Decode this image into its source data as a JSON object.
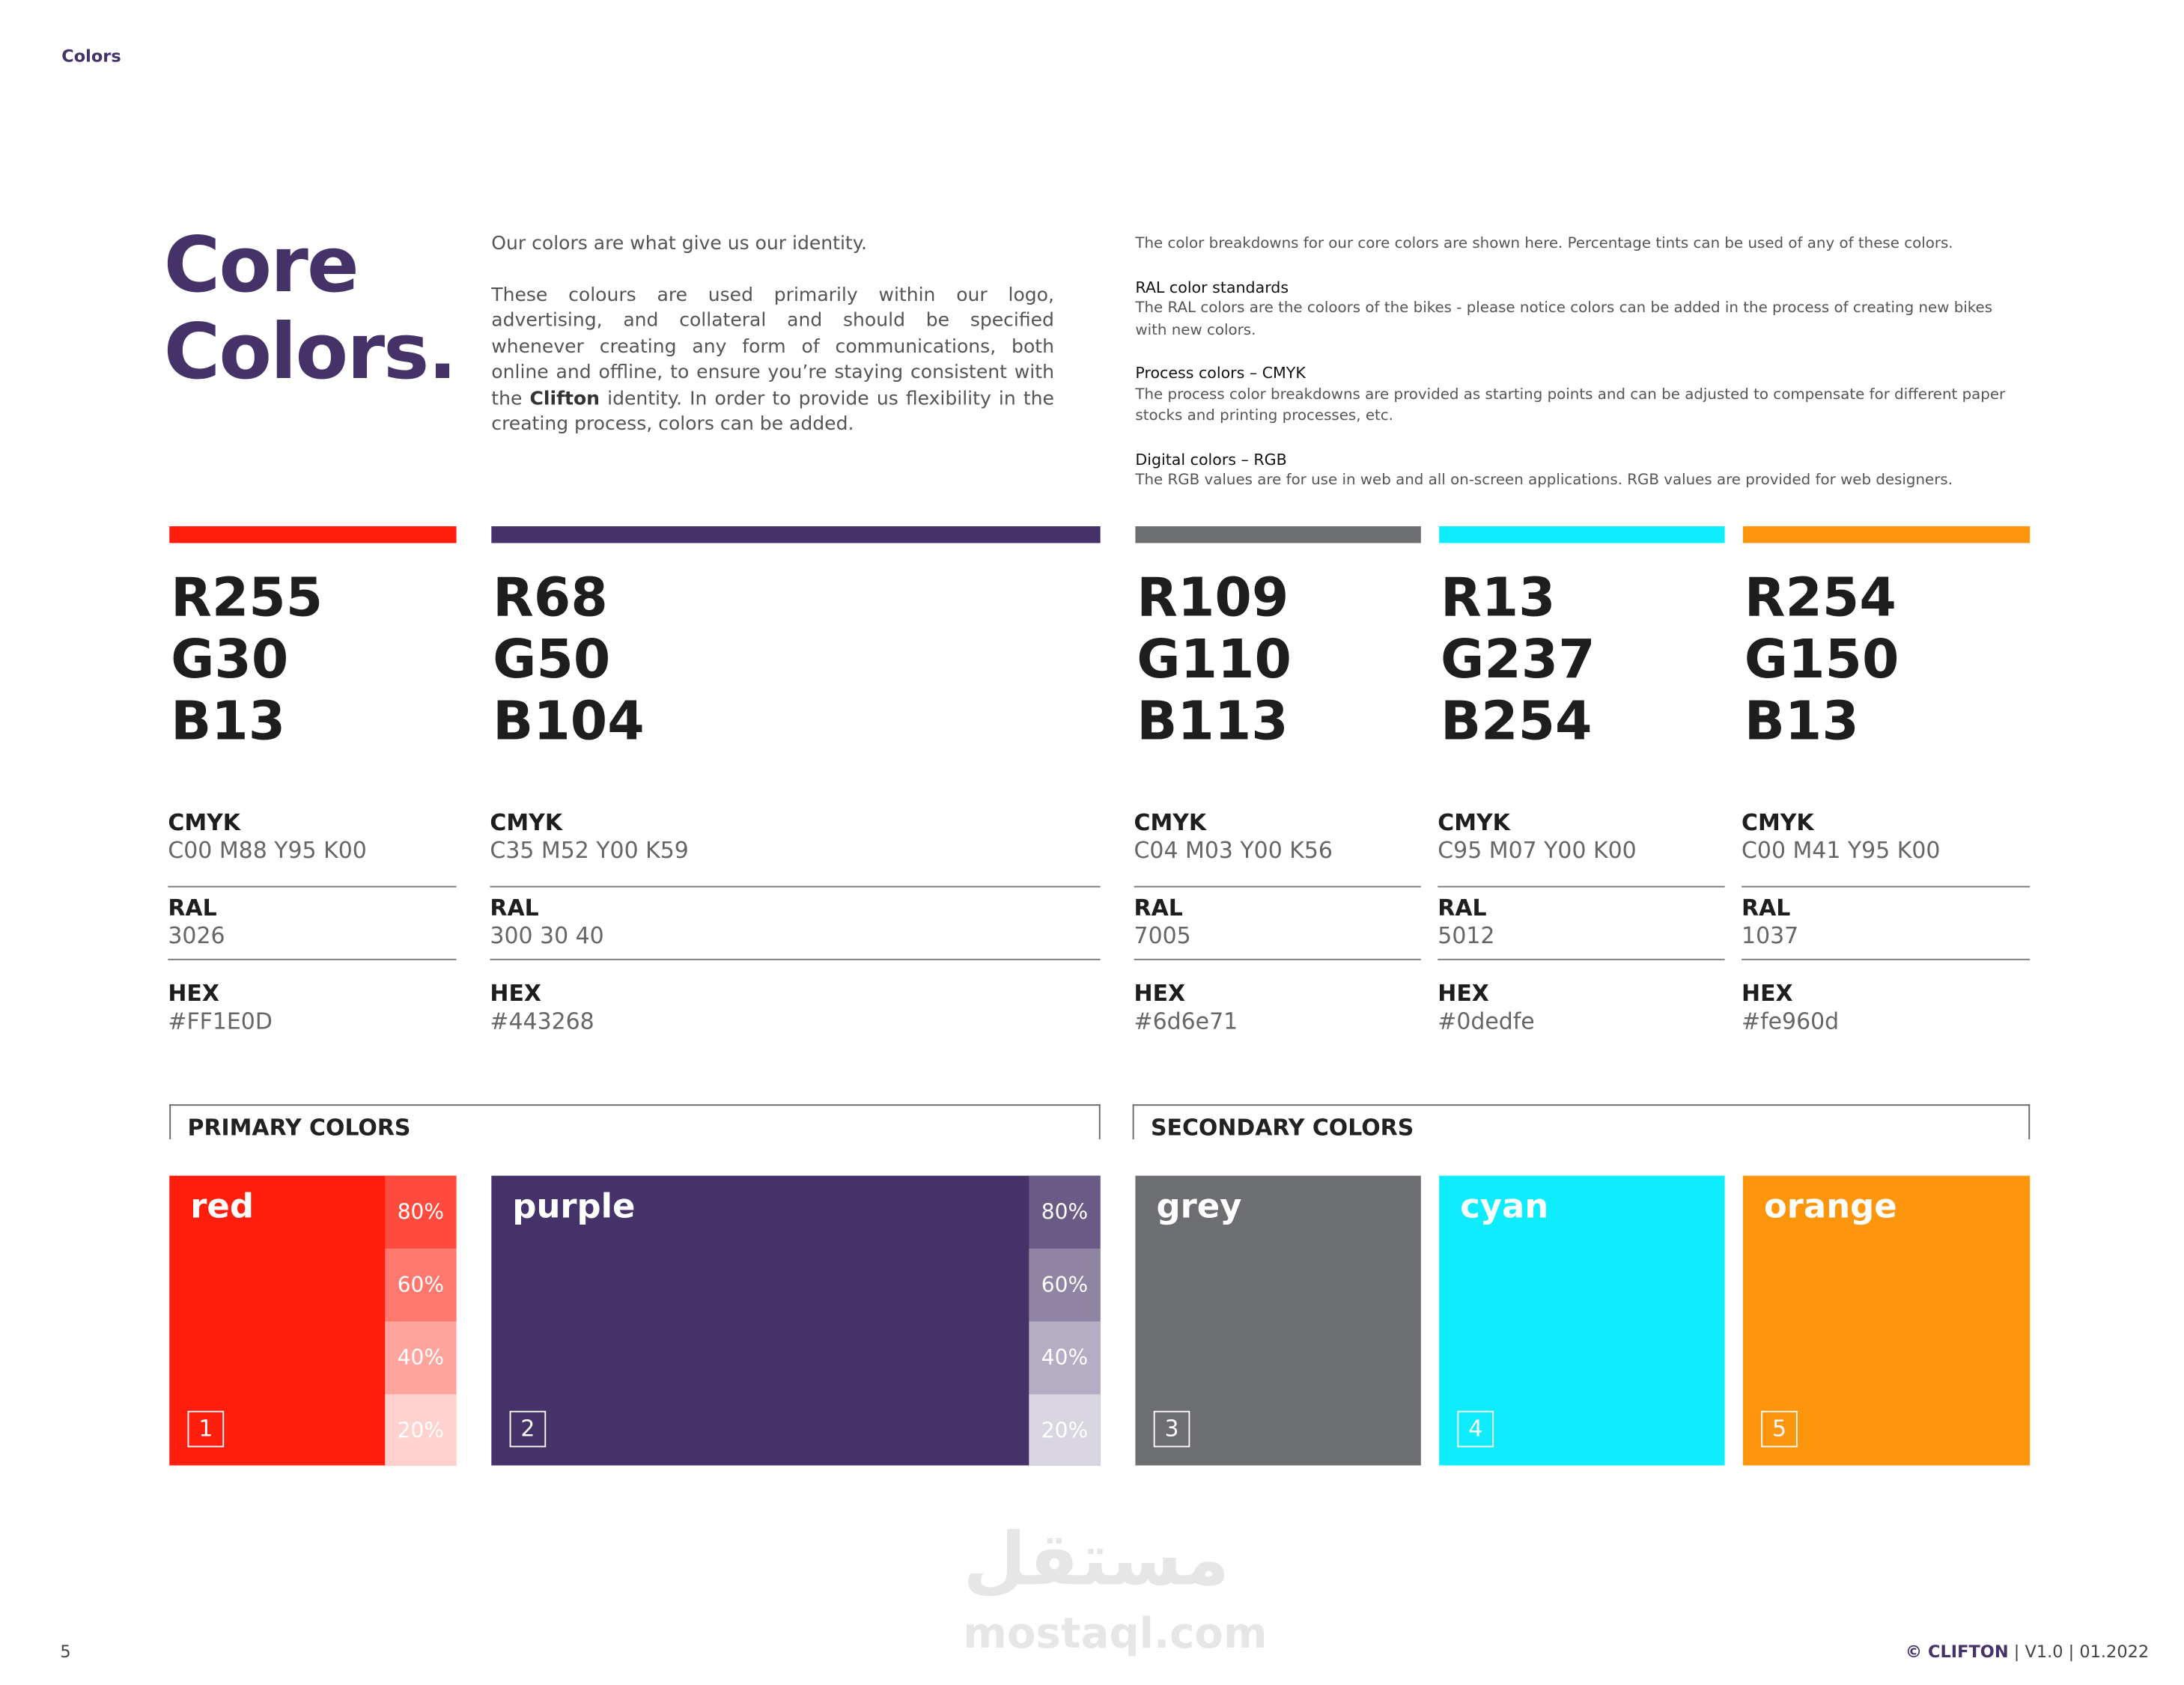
{
  "header": {
    "section": "Colors"
  },
  "title": {
    "lines": [
      "Core",
      "Colors."
    ]
  },
  "intro": {
    "lead": "Our colors are what give us our identity.",
    "body_before": "These colours are used primarily within our logo, advertising, and collateral and should be specified whenever creating any form of communications, both online and offline, to ensure you’re staying consistent with the",
    "body_bold": "Clifton",
    "body_after": "identity. In order to provide us flexibility in the creating process, colors can be added."
  },
  "notes": {
    "lead": "The color breakdowns for our core colors are shown here. Percentage tints can be used of any of these colors.",
    "sections": [
      {
        "heading": "RAL color standards",
        "text": "The RAL colors are the coloors of the bikes - please notice colors can be added in the process of creating new bikes with new colors."
      },
      {
        "heading": "Process colors – CMYK",
        "text": "The process color breakdowns are provided as starting points and can be adjusted to compensate for different paper stocks and printing processes, etc."
      },
      {
        "heading": "Digital colors – RGB",
        "text": "The RGB values are for use in web and all on-screen applications. RGB values are provided for web designers."
      }
    ]
  },
  "labels": {
    "cmyk": "CMYK",
    "ral": "RAL",
    "hex": "HEX"
  },
  "groups": [
    "PRIMARY COLORS",
    "SECONDARY COLORS"
  ],
  "colors": [
    {
      "rgb": [
        "R255",
        "G30",
        "B13"
      ],
      "cmyk": "C00 M88 Y95 K00",
      "ral": "3026",
      "hex": "#FF1E0D",
      "name": "red",
      "number": 1,
      "tints": [
        {
          "value": 80,
          "label": "80%"
        },
        {
          "value": 60,
          "label": "60%"
        },
        {
          "value": 40,
          "label": "40%"
        },
        {
          "value": 20,
          "label": "20%"
        }
      ]
    },
    {
      "rgb": [
        "R68",
        "G50",
        "B104"
      ],
      "cmyk": "C35 M52 Y00 K59",
      "ral": "300 30 40",
      "hex": "#443268",
      "name": "purple",
      "number": 2,
      "tints": [
        {
          "value": 80,
          "label": "80%"
        },
        {
          "value": 60,
          "label": "60%"
        },
        {
          "value": 40,
          "label": "40%"
        },
        {
          "value": 20,
          "label": "20%"
        }
      ]
    },
    {
      "rgb": [
        "R109",
        "G110",
        "B113"
      ],
      "cmyk": "C04 M03 Y00 K56",
      "ral": "7005",
      "hex": "#6d6e71",
      "name": "grey",
      "number": 3
    },
    {
      "rgb": [
        "R13",
        "G237",
        "B254"
      ],
      "cmyk": "C95 M07 Y00 K00",
      "ral": "5012",
      "hex": "#0dedfe",
      "name": "cyan",
      "number": 4
    },
    {
      "rgb": [
        "R254",
        "G150",
        "B13"
      ],
      "cmyk": "C00 M41 Y95 K00",
      "ral": "1037",
      "hex": "#fe960d",
      "name": "orange",
      "number": 5
    }
  ],
  "watermark": {
    "arabic": "مستقل",
    "latin": "mostaql.com"
  },
  "footer": {
    "page": 5,
    "brand": "© CLIFTON",
    "version": "V1.0",
    "date": "01.2022"
  }
}
